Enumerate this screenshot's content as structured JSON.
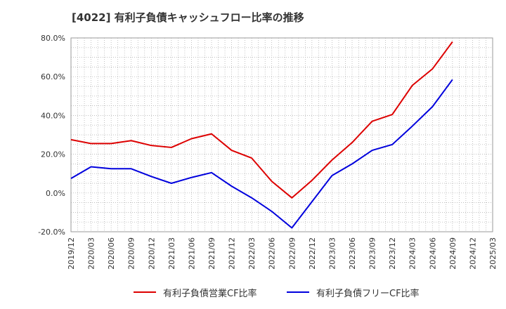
{
  "title": "[4022]  有利子負債キャッシュフロー比率の推移",
  "chart_data": {
    "type": "line",
    "title": "[4022]  有利子負債キャッシュフロー比率の推移",
    "x": [
      "2019/12",
      "2020/03",
      "2020/06",
      "2020/09",
      "2020/12",
      "2021/03",
      "2021/06",
      "2021/09",
      "2021/12",
      "2022/03",
      "2022/06",
      "2022/09",
      "2022/12",
      "2023/03",
      "2023/06",
      "2023/09",
      "2023/12",
      "2024/03",
      "2024/06",
      "2024/09",
      "2024/12",
      "2025/03"
    ],
    "ylim": [
      -20,
      80
    ],
    "yticks": [
      -20,
      0,
      20,
      40,
      60,
      80
    ],
    "ytick_labels": [
      "-20.0%",
      "0.0%",
      "20.0%",
      "40.0%",
      "60.0%",
      "80.0%"
    ],
    "grid": true,
    "legend_position": "bottom",
    "series": [
      {
        "name": "有利子負債営業CF比率",
        "color": "#dd0000",
        "values": [
          27.5,
          25.5,
          25.5,
          27,
          24.5,
          23.5,
          28,
          30.5,
          22,
          18,
          6,
          -2.5,
          6.5,
          17,
          26,
          37,
          40.5,
          55.5,
          64,
          78,
          null,
          null
        ]
      },
      {
        "name": "有利子負債フリーCF比率",
        "color": "#0000dd",
        "values": [
          7.5,
          13.5,
          12.5,
          12.5,
          8.5,
          5,
          8,
          10.5,
          3.5,
          -2.5,
          -9.5,
          -18,
          -4.5,
          9,
          15,
          22,
          25,
          34.5,
          44.5,
          58.5,
          null,
          null
        ]
      }
    ]
  },
  "legend": {
    "items": [
      {
        "label": "有利子負債営業CF比率",
        "color": "#dd0000"
      },
      {
        "label": "有利子負債フリーCF比率",
        "color": "#0000dd"
      }
    ]
  }
}
